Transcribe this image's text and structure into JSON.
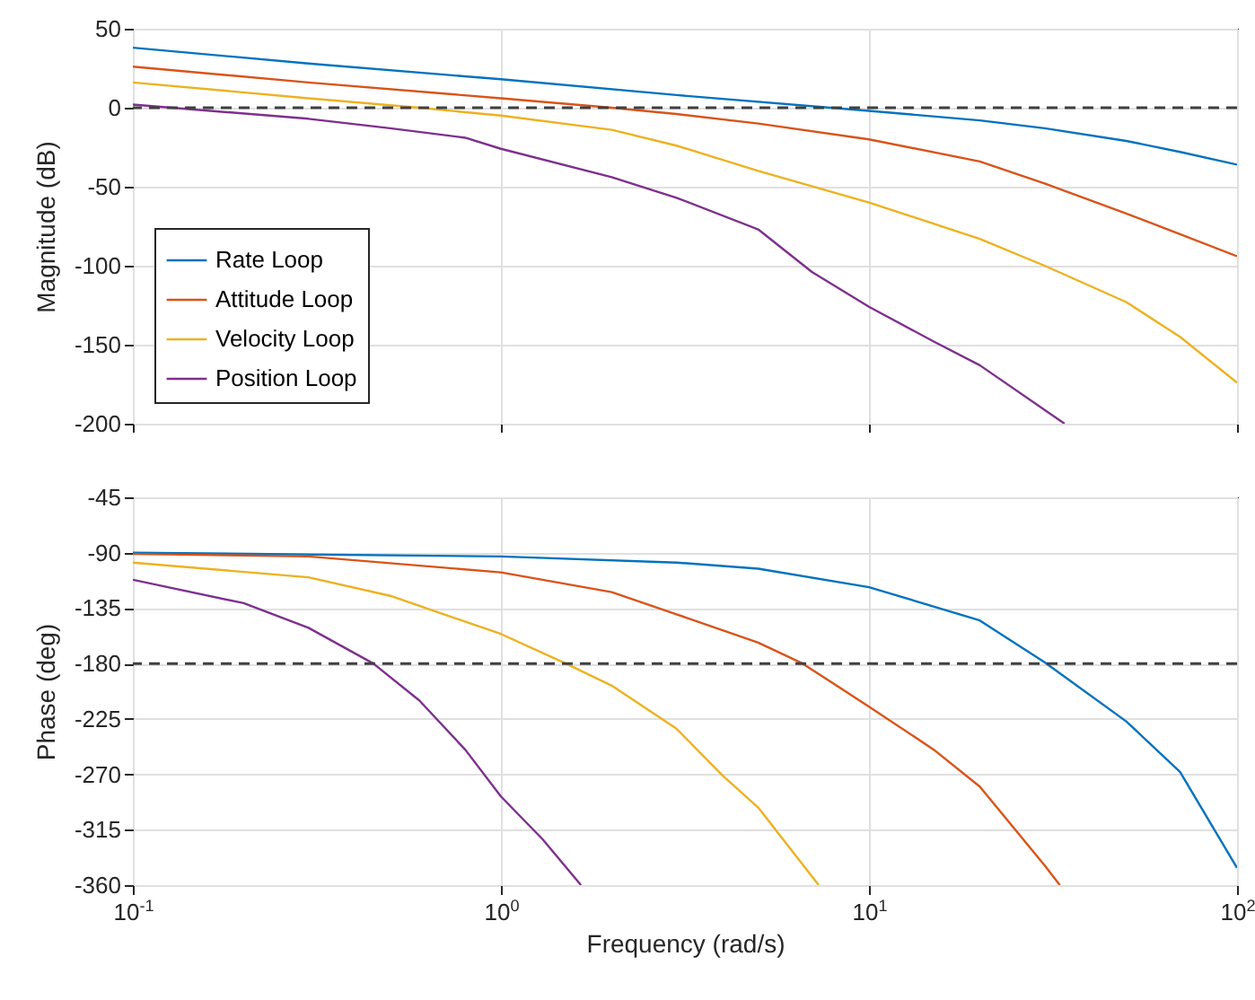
{
  "chart_data": [
    {
      "type": "line",
      "ylabel": "Magnitude (dB)",
      "log": "x",
      "xlim": [
        0.1,
        100
      ],
      "xticks": [
        {
          "value": 0.1,
          "label": null
        },
        {
          "value": 1,
          "label": null
        },
        {
          "value": 10,
          "label": null
        },
        {
          "value": 100,
          "label": null
        }
      ],
      "ylim": [
        -200,
        50
      ],
      "yticks": [
        -200,
        -150,
        -100,
        -50,
        0,
        50
      ],
      "tick_labels": "y",
      "grid": true,
      "legend": "bottom left",
      "ref_lines": [
        {
          "axis": "y",
          "value": 0,
          "color": "#404040",
          "line_style": "dashed"
        }
      ],
      "series": [
        {
          "name": "Rate Loop",
          "color": "#0072bd",
          "x": [
            0.1,
            0.3,
            1,
            3,
            10,
            20,
            30,
            50,
            70,
            100
          ],
          "values": [
            38,
            28,
            18,
            8,
            -2,
            -8,
            -13,
            -21,
            -28,
            -36
          ]
        },
        {
          "name": "Attitude Loop",
          "color": "#d95319",
          "x": [
            0.1,
            0.3,
            1,
            2,
            3,
            5,
            10,
            20,
            30,
            50,
            70,
            100
          ],
          "values": [
            26,
            16,
            6,
            0,
            -4,
            -10,
            -20,
            -34,
            -48,
            -67,
            -80,
            -94
          ]
        },
        {
          "name": "Velocity Loop",
          "color": "#edb120",
          "x": [
            0.1,
            0.3,
            0.6,
            1,
            2,
            3,
            5,
            10,
            20,
            30,
            50,
            70,
            100
          ],
          "values": [
            16,
            6,
            0,
            -5,
            -14,
            -24,
            -40,
            -60,
            -83,
            -100,
            -123,
            -145,
            -174
          ]
        },
        {
          "name": "Position Loop",
          "color": "#7e2f8e",
          "x": [
            0.1,
            0.3,
            0.5,
            0.8,
            1,
            2,
            3,
            5,
            7,
            10,
            15,
            20,
            34
          ],
          "values": [
            2,
            -7,
            -13,
            -19,
            -26,
            -44,
            -57,
            -77,
            -104,
            -126,
            -148,
            -163,
            -200
          ]
        }
      ]
    },
    {
      "type": "line",
      "xlabel": "Frequency (rad/s)",
      "ylabel": "Phase (deg)",
      "log": "x",
      "xlim": [
        0.1,
        100
      ],
      "xticks": [
        {
          "value": 0.1,
          "label": "10$^{-1}$"
        },
        {
          "value": 1,
          "label": "10$^{0}$"
        },
        {
          "value": 10,
          "label": "10$^{1}$"
        },
        {
          "value": 100,
          "label": "10$^{2}$"
        }
      ],
      "ylim": [
        -360,
        -45
      ],
      "yticks": [
        -360,
        -315,
        -270,
        -225,
        -180,
        -135,
        -90,
        -45
      ],
      "grid": true,
      "ref_lines": [
        {
          "axis": "y",
          "value": -180,
          "color": "#404040",
          "line_style": "dashed"
        }
      ],
      "series": [
        {
          "color": "#0072bd",
          "x": [
            0.1,
            1,
            3,
            5,
            10,
            20,
            30,
            50,
            70,
            100
          ],
          "values": [
            -90,
            -93,
            -98,
            -103,
            -118,
            -145,
            -179,
            -227,
            -268,
            -346
          ]
        },
        {
          "color": "#d95319",
          "x": [
            0.1,
            0.3,
            1,
            2,
            3,
            5,
            6.6,
            10,
            15,
            20,
            30,
            33
          ],
          "values": [
            -91,
            -93,
            -106,
            -122,
            -140,
            -163,
            -180,
            -215,
            -250,
            -280,
            -344,
            -360
          ]
        },
        {
          "color": "#edb120",
          "x": [
            0.1,
            0.3,
            0.5,
            1,
            1.5,
            2,
            3,
            4,
            5,
            7.3
          ],
          "values": [
            -98,
            -110,
            -125,
            -156,
            -180,
            -198,
            -233,
            -271,
            -297,
            -360
          ]
        },
        {
          "color": "#7e2f8e",
          "x": [
            0.1,
            0.2,
            0.3,
            0.45,
            0.6,
            0.8,
            1,
            1.3,
            1.65
          ],
          "values": [
            -112,
            -131,
            -151,
            -180,
            -210,
            -250,
            -288,
            -323,
            -360
          ]
        }
      ]
    }
  ]
}
